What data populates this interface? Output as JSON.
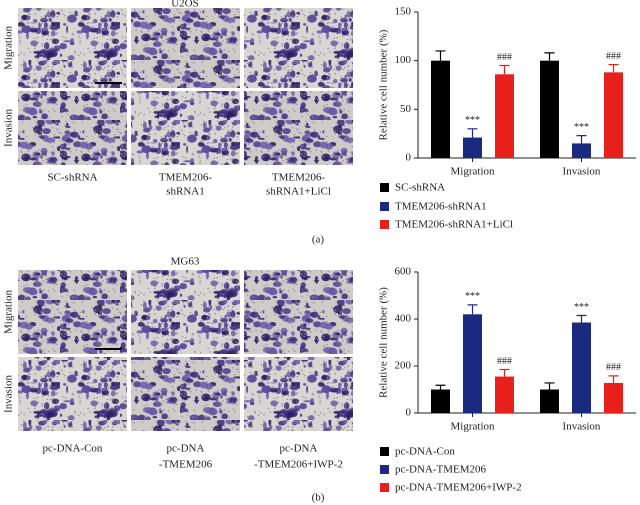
{
  "panels": [
    {
      "cell_line": "U2OS",
      "rows": [
        "Migration",
        "Invasion"
      ],
      "columns": [
        [
          "SC-shRNA"
        ],
        [
          "TMEM206-",
          "shRNA1"
        ],
        [
          "TMEM206-",
          "shRNA1+LiCl"
        ]
      ],
      "label": "(a)"
    },
    {
      "cell_line": "MG63",
      "rows": [
        "Migration",
        "Invasion"
      ],
      "columns": [
        [
          "pc-DNA-Con"
        ],
        [
          "pc-DNA",
          "-TMEM206"
        ],
        [
          "pc-DNA",
          "-TMEM206+IWP-2"
        ]
      ],
      "label": "(b)"
    }
  ],
  "chart_data": [
    {
      "type": "bar",
      "ylabel": "Relative cell number (%)",
      "categories": [
        "Migration",
        "Invasion"
      ],
      "ylim": [
        0,
        150
      ],
      "yticks": [
        0,
        50,
        100,
        150
      ],
      "series": [
        {
          "name": "SC-shRNA",
          "color": "#000000",
          "values": [
            100,
            100
          ],
          "errors": [
            10,
            8
          ]
        },
        {
          "name": "TMEM206-shRNA1",
          "color": "#1a2a80",
          "values": [
            21,
            15
          ],
          "errors": [
            9,
            8
          ],
          "annotations": [
            "***",
            "***"
          ]
        },
        {
          "name": "TMEM206-shRNA1+LiCl",
          "color": "#e8201c",
          "values": [
            86,
            88
          ],
          "errors": [
            9,
            8
          ],
          "annotations": [
            "###",
            "###"
          ]
        }
      ]
    },
    {
      "type": "bar",
      "ylabel": "Relative cell number (%)",
      "categories": [
        "Migration",
        "Invasion"
      ],
      "ylim": [
        0,
        600
      ],
      "yticks": [
        0,
        200,
        400,
        600
      ],
      "series": [
        {
          "name": "pc-DNA-Con",
          "color": "#000000",
          "values": [
            100,
            100
          ],
          "errors": [
            18,
            28
          ]
        },
        {
          "name": "pc-DNA-TMEM206",
          "color": "#1a2a80",
          "values": [
            420,
            385
          ],
          "errors": [
            40,
            30
          ],
          "annotations": [
            "***",
            "***"
          ]
        },
        {
          "name": "pc-DNA-TMEM206+IWP-2",
          "color": "#e8201c",
          "values": [
            155,
            128
          ],
          "errors": [
            30,
            30
          ],
          "annotations": [
            "###",
            "###"
          ]
        }
      ]
    }
  ]
}
